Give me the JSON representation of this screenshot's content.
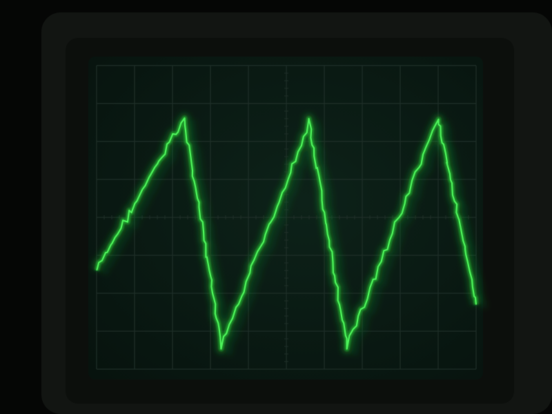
{
  "colors": {
    "background": "#050605",
    "bezel_outer": "#121512",
    "bezel_inner": "#0c0f0c",
    "screen": "#0a1c16",
    "graticule": "#1f2f28",
    "trace_glow": "#1f9e2c",
    "trace_core": "#53ff60"
  },
  "graticule": {
    "major_columns": 10,
    "major_rows": 8,
    "minor_ticks_per_division": 5
  },
  "trace": {
    "waveform": "sawtooth",
    "visible_cycles": 3,
    "vertex_levels_major_divisions": [
      -1.4,
      2.6,
      -3.4,
      2.5,
      -3.4,
      2.6,
      -2.3
    ],
    "x_positions_major_divisions": [
      0.0,
      2.3,
      3.3,
      5.6,
      6.6,
      9.0,
      10.0
    ]
  }
}
